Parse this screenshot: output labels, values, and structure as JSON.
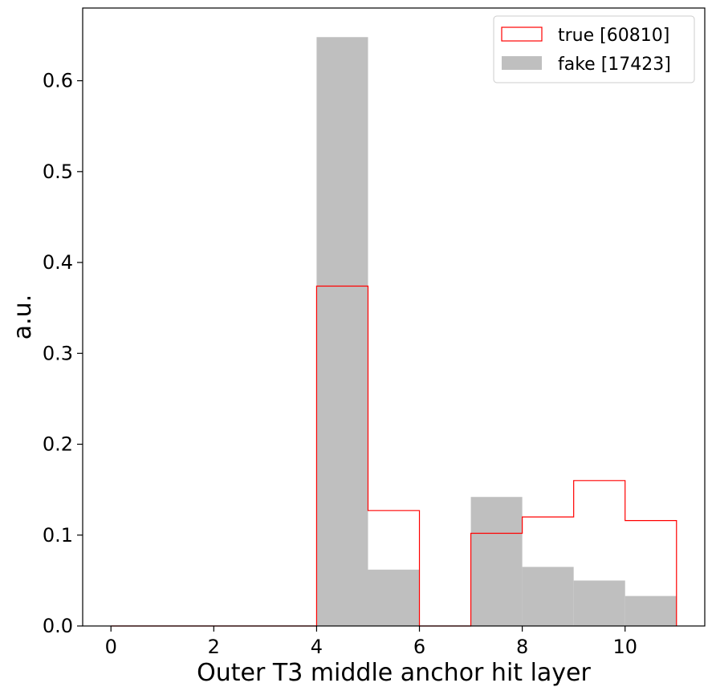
{
  "chart_data": {
    "type": "bar",
    "xlabel": "Outer T3 middle anchor hit layer",
    "ylabel": "a.u.",
    "xlim": [
      -0.55,
      11.55
    ],
    "ylim": [
      0,
      0.68
    ],
    "xticks": [
      0,
      2,
      4,
      6,
      8,
      10
    ],
    "xtick_labels": [
      "0",
      "2",
      "4",
      "6",
      "8",
      "10"
    ],
    "yticks": [
      0.0,
      0.1,
      0.2,
      0.3,
      0.4,
      0.5,
      0.6
    ],
    "ytick_labels": [
      "0.0",
      "0.1",
      "0.2",
      "0.3",
      "0.4",
      "0.5",
      "0.6"
    ],
    "bin_edges": [
      0,
      1,
      2,
      3,
      4,
      5,
      6,
      7,
      8,
      9,
      10,
      11
    ],
    "legend_position": "upper-right",
    "grid": false,
    "series": [
      {
        "name": "true [60810]",
        "style": "step",
        "color": "#ff0000",
        "values": [
          0,
          0,
          0,
          0,
          0.374,
          0.127,
          0,
          0.102,
          0.12,
          0.16,
          0.116
        ]
      },
      {
        "name": "fake [17423]",
        "style": "filled",
        "color": "#bfbfbf",
        "values": [
          0,
          0,
          0,
          0,
          0.648,
          0.062,
          0,
          0.142,
          0.065,
          0.05,
          0.033
        ]
      }
    ]
  }
}
